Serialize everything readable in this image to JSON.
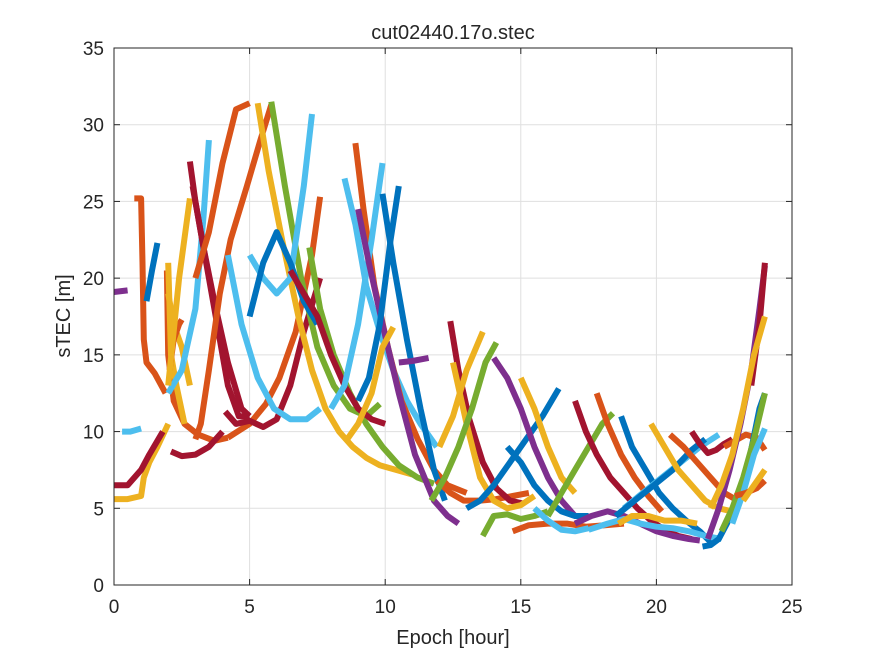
{
  "chart_data": {
    "type": "line",
    "title": "cut02440.17o.stec",
    "xlabel": "Epoch [hour]",
    "ylabel": "sTEC [m]",
    "xlim": [
      0,
      25
    ],
    "ylim": [
      0,
      35
    ],
    "xticks": [
      0,
      5,
      10,
      15,
      20,
      25
    ],
    "yticks": [
      0,
      5,
      10,
      15,
      20,
      25,
      30,
      35
    ],
    "grid": true,
    "colors": [
      "#0072BD",
      "#D95319",
      "#EDB120",
      "#7E2F8E",
      "#77AC30",
      "#4DBEEE",
      "#A2142F"
    ],
    "series": [
      {
        "color": "#D95319",
        "x": [
          0.75,
          1.0,
          1.05,
          1.1,
          1.2,
          1.5,
          1.9
        ],
        "y": [
          25.2,
          25.2,
          21.0,
          16.0,
          14.5,
          13.8,
          12.5
        ]
      },
      {
        "color": "#0072BD",
        "x": [
          1.2,
          1.4,
          1.6
        ],
        "y": [
          18.5,
          20.5,
          22.3
        ]
      },
      {
        "color": "#EDB120",
        "x": [
          0.0,
          0.5,
          1.0,
          1.1,
          1.3,
          1.6,
          2.0
        ],
        "y": [
          5.6,
          5.6,
          5.8,
          7.0,
          8.0,
          9.0,
          10.5
        ]
      },
      {
        "color": "#A2142F",
        "x": [
          0.0,
          0.5,
          1.0,
          1.3,
          1.8
        ],
        "y": [
          6.5,
          6.5,
          7.5,
          8.5,
          10.0
        ]
      },
      {
        "color": "#7E2F8E",
        "x": [
          0.0,
          0.5
        ],
        "y": [
          19.1,
          19.2
        ]
      },
      {
        "color": "#4DBEEE",
        "x": [
          0.3,
          0.6,
          1.0
        ],
        "y": [
          10.0,
          10.0,
          10.2
        ]
      },
      {
        "color": "#D95319",
        "x": [
          1.95,
          2.0,
          2.2,
          2.6,
          3.1,
          3.7,
          4.2
        ],
        "y": [
          20.5,
          15.0,
          12.0,
          10.5,
          9.8,
          9.4,
          9.6
        ]
      },
      {
        "color": "#D95319",
        "x": [
          4.2,
          5.0,
          5.6,
          6.1,
          6.7,
          7.3,
          7.6
        ],
        "y": [
          9.6,
          10.5,
          11.8,
          13.5,
          16.5,
          21.5,
          25.3
        ]
      },
      {
        "color": "#EDB120",
        "x": [
          2.0,
          2.1,
          2.3,
          2.6
        ],
        "y": [
          21.0,
          15.0,
          13.0,
          10.5
        ]
      },
      {
        "color": "#EDB120",
        "x": [
          2.0,
          2.2,
          2.5,
          2.8
        ],
        "y": [
          19.0,
          17.0,
          15.5,
          13.0
        ]
      },
      {
        "color": "#A2142F",
        "x": [
          2.1,
          2.5,
          3.0,
          3.5,
          4.0
        ],
        "y": [
          8.7,
          8.4,
          8.5,
          9.0,
          10.0
        ]
      },
      {
        "color": "#D95319",
        "x": [
          2.05,
          2.2,
          2.4,
          2.5
        ],
        "y": [
          14.0,
          16.0,
          17.0,
          17.3
        ]
      },
      {
        "color": "#4DBEEE",
        "x": [
          2.0,
          2.5,
          3.0,
          3.3,
          3.5
        ],
        "y": [
          12.5,
          14.0,
          18.0,
          24.0,
          29.0
        ]
      },
      {
        "color": "#EDB120",
        "x": [
          2.0,
          2.4,
          2.8
        ],
        "y": [
          13.0,
          20.0,
          25.2
        ]
      },
      {
        "color": "#A2142F",
        "x": [
          2.8,
          3.0,
          3.3,
          3.7,
          4.2,
          4.7,
          5.0
        ],
        "y": [
          27.6,
          25.0,
          22.0,
          18.5,
          14.5,
          11.5,
          11.0
        ]
      },
      {
        "color": "#A2142F",
        "x": [
          2.9,
          3.1,
          3.4,
          3.8,
          4.2,
          4.6,
          5.0
        ],
        "y": [
          26.0,
          24.0,
          21.0,
          17.0,
          13.0,
          11.0,
          11.0
        ]
      },
      {
        "color": "#D95319",
        "x": [
          3.0,
          3.2,
          3.5,
          3.9,
          4.3,
          4.9,
          5.4,
          5.8
        ],
        "y": [
          9.5,
          10.5,
          14.0,
          19.0,
          22.5,
          26.0,
          29.0,
          31.3
        ]
      },
      {
        "color": "#A2142F",
        "x": [
          4.1,
          4.5,
          5.0,
          5.5,
          6.0,
          6.5,
          7.0,
          7.6
        ],
        "y": [
          11.3,
          10.5,
          10.7,
          10.3,
          10.8,
          13.0,
          16.5,
          20.0
        ]
      },
      {
        "color": "#4DBEEE",
        "x": [
          4.2,
          4.7,
          5.3,
          5.9,
          6.5,
          7.1,
          7.6
        ],
        "y": [
          21.5,
          17.0,
          13.5,
          11.5,
          10.8,
          10.8,
          11.5
        ]
      },
      {
        "color": "#D95319",
        "x": [
          3.0,
          3.5,
          4.0,
          4.5,
          5.0
        ],
        "y": [
          20.0,
          23.0,
          27.5,
          31.0,
          31.4
        ]
      },
      {
        "color": "#EDB120",
        "x": [
          5.3,
          5.7,
          6.2,
          6.8,
          7.3,
          7.8,
          8.3,
          8.8,
          9.3,
          9.8,
          10.4,
          11.0
        ],
        "y": [
          31.4,
          27.0,
          22.5,
          17.5,
          14.0,
          11.5,
          10.0,
          9.0,
          8.3,
          7.8,
          7.5,
          7.2
        ]
      },
      {
        "color": "#77AC30",
        "x": [
          5.8,
          6.3,
          6.9,
          7.5,
          8.1,
          8.7,
          9.3,
          9.8
        ],
        "y": [
          31.5,
          26.0,
          20.0,
          15.5,
          13.0,
          11.5,
          11.0,
          11.8
        ]
      },
      {
        "color": "#4DBEEE",
        "x": [
          5.0,
          5.5,
          6.0,
          6.5,
          7.0,
          7.3
        ],
        "y": [
          21.5,
          20.0,
          19.0,
          20.0,
          26.0,
          30.7
        ]
      },
      {
        "color": "#0072BD",
        "x": [
          5.0,
          5.5,
          6.0,
          6.5,
          7.0,
          7.5
        ],
        "y": [
          17.5,
          21.0,
          23.0,
          21.0,
          18.5,
          17.0
        ]
      },
      {
        "color": "#77AC30",
        "x": [
          7.2,
          7.6,
          8.1,
          8.7,
          9.3,
          9.9,
          10.5,
          11.2,
          11.8
        ],
        "y": [
          22.0,
          18.0,
          15.0,
          12.5,
          10.5,
          9.0,
          7.8,
          7.0,
          6.6
        ]
      },
      {
        "color": "#A2142F",
        "x": [
          6.5,
          7.0,
          7.5,
          8.0,
          8.5,
          9.0,
          9.5,
          10.0
        ],
        "y": [
          20.5,
          19.0,
          17.5,
          15.0,
          13.0,
          11.5,
          10.8,
          10.5
        ]
      },
      {
        "color": "#4DBEEE",
        "x": [
          8.5,
          8.9,
          9.3,
          9.8,
          10.3,
          10.8,
          11.3,
          11.9
        ],
        "y": [
          26.5,
          23.5,
          19.5,
          16.5,
          14.0,
          12.0,
          10.5,
          9.0
        ]
      },
      {
        "color": "#D95319",
        "x": [
          8.9,
          9.2,
          9.6,
          10.1,
          10.6,
          11.2,
          11.8,
          12.3,
          13.0
        ],
        "y": [
          28.8,
          24.5,
          19.5,
          15.5,
          12.0,
          9.5,
          7.5,
          6.5,
          6.0
        ]
      },
      {
        "color": "#4DBEEE",
        "x": [
          8.0,
          8.5,
          9.0,
          9.5,
          9.9
        ],
        "y": [
          11.5,
          13.0,
          17.0,
          22.5,
          27.5
        ]
      },
      {
        "color": "#7E2F8E",
        "x": [
          9.0,
          9.4,
          9.9,
          10.5,
          11.1,
          11.8,
          12.3,
          12.7
        ],
        "y": [
          24.5,
          21.0,
          17.0,
          12.5,
          8.5,
          5.5,
          4.5,
          4.0
        ]
      },
      {
        "color": "#0072BD",
        "x": [
          9.0,
          9.4,
          9.8,
          10.2,
          10.5
        ],
        "y": [
          12.0,
          13.5,
          17.0,
          22.5,
          26.0
        ]
      },
      {
        "color": "#0072BD",
        "x": [
          9.9,
          10.3,
          10.8,
          11.3,
          11.8,
          12.2
        ],
        "y": [
          25.5,
          21.0,
          16.0,
          11.5,
          7.5,
          5.5
        ]
      },
      {
        "color": "#EDB120",
        "x": [
          8.6,
          9.0,
          9.5,
          9.9,
          10.3
        ],
        "y": [
          9.5,
          10.5,
          12.5,
          15.5,
          16.8
        ]
      },
      {
        "color": "#7E2F8E",
        "x": [
          10.5,
          11.0,
          11.6
        ],
        "y": [
          14.5,
          14.6,
          14.8
        ]
      },
      {
        "color": "#D95319",
        "x": [
          11.9,
          12.4,
          12.9,
          13.5,
          14.1,
          14.7,
          15.3
        ],
        "y": [
          6.8,
          6.0,
          5.5,
          5.5,
          5.6,
          5.8,
          6.0
        ]
      },
      {
        "color": "#A2142F",
        "x": [
          12.4,
          12.7,
          13.1,
          13.6,
          14.1,
          14.6,
          15.1
        ],
        "y": [
          17.2,
          14.0,
          10.8,
          8.0,
          6.3,
          5.5,
          5.3
        ]
      },
      {
        "color": "#EDB120",
        "x": [
          12.5,
          13.0,
          13.5,
          14.0,
          14.5,
          15.0,
          15.5
        ],
        "y": [
          14.5,
          10.5,
          7.0,
          5.5,
          5.0,
          5.2,
          5.8
        ]
      },
      {
        "color": "#77AC30",
        "x": [
          11.7,
          12.2,
          12.7,
          13.2,
          13.7,
          14.1
        ],
        "y": [
          5.5,
          7.0,
          9.0,
          11.5,
          14.5,
          15.8
        ]
      },
      {
        "color": "#EDB120",
        "x": [
          12.0,
          12.5,
          13.0,
          13.6
        ],
        "y": [
          9.0,
          11.0,
          14.0,
          16.5
        ]
      },
      {
        "color": "#0072BD",
        "x": [
          13.0,
          13.5,
          14.0,
          14.6,
          15.2,
          15.8,
          16.4
        ],
        "y": [
          5.0,
          5.5,
          6.5,
          8.0,
          9.5,
          11.0,
          12.8
        ]
      },
      {
        "color": "#77AC30",
        "x": [
          13.6,
          14.0,
          14.5,
          15.0,
          15.5,
          16.0
        ],
        "y": [
          3.2,
          4.5,
          4.6,
          4.3,
          4.5,
          4.8
        ]
      },
      {
        "color": "#7E2F8E",
        "x": [
          14.0,
          14.5,
          15.0,
          15.5,
          16.0,
          16.5,
          17.0
        ],
        "y": [
          14.8,
          13.5,
          11.5,
          9.0,
          7.0,
          5.5,
          4.5
        ]
      },
      {
        "color": "#0072BD",
        "x": [
          14.5,
          15.0,
          15.5,
          16.0,
          16.5,
          17.0,
          17.5
        ],
        "y": [
          9.0,
          8.0,
          6.5,
          5.5,
          4.8,
          4.5,
          4.5
        ]
      },
      {
        "color": "#EDB120",
        "x": [
          15.0,
          15.5,
          16.0,
          16.5,
          17.0
        ],
        "y": [
          13.5,
          11.5,
          9.0,
          7.0,
          6.0
        ]
      },
      {
        "color": "#D95319",
        "x": [
          14.7,
          15.3,
          16.0,
          16.7,
          17.4,
          18.1,
          18.8
        ],
        "y": [
          3.5,
          3.9,
          4.0,
          4.0,
          3.8,
          3.9,
          4.0
        ]
      },
      {
        "color": "#4DBEEE",
        "x": [
          15.5,
          16.0,
          16.5,
          17.0,
          17.5
        ],
        "y": [
          5.0,
          4.2,
          3.6,
          3.5,
          3.7
        ]
      },
      {
        "color": "#77AC30",
        "x": [
          16.0,
          16.5,
          17.0,
          17.5,
          18.0,
          18.4
        ],
        "y": [
          4.5,
          6.0,
          7.5,
          9.0,
          10.5,
          11.2
        ]
      },
      {
        "color": "#A2142F",
        "x": [
          17.0,
          17.4,
          17.8,
          18.3,
          18.8,
          19.3,
          19.8,
          20.3,
          20.8,
          21.3
        ],
        "y": [
          12.0,
          10.0,
          8.5,
          7.0,
          6.0,
          5.0,
          4.2,
          3.6,
          3.2,
          3.0
        ]
      },
      {
        "color": "#D95319",
        "x": [
          17.8,
          18.2,
          18.7,
          19.2,
          19.7,
          20.2
        ],
        "y": [
          12.5,
          10.5,
          8.5,
          7.0,
          5.8,
          4.8
        ]
      },
      {
        "color": "#7E2F8E",
        "x": [
          17.0,
          17.6,
          18.2,
          18.8,
          19.4,
          20.0,
          20.6,
          21.2,
          21.6
        ],
        "y": [
          4.0,
          4.5,
          4.8,
          4.5,
          4.0,
          3.5,
          3.2,
          3.0,
          2.9
        ]
      },
      {
        "color": "#0072BD",
        "x": [
          18.7,
          19.1,
          19.6,
          20.1,
          20.6,
          21.1,
          21.6,
          22.0
        ],
        "y": [
          11.0,
          9.0,
          7.5,
          6.0,
          5.0,
          4.2,
          3.5,
          2.8
        ]
      },
      {
        "color": "#4DBEEE",
        "x": [
          17.5,
          18.2,
          18.8,
          19.4,
          20.0,
          20.6,
          21.2,
          21.8,
          22.4
        ],
        "y": [
          3.6,
          4.0,
          4.3,
          4.0,
          3.8,
          3.7,
          3.5,
          3.2,
          3.0
        ]
      },
      {
        "color": "#EDB120",
        "x": [
          18.6,
          19.1,
          19.7,
          20.3,
          20.9,
          21.5
        ],
        "y": [
          4.0,
          4.5,
          4.5,
          4.2,
          4.2,
          4.0
        ]
      },
      {
        "color": "#4DBEEE",
        "x": [
          18.8,
          19.5,
          20.2,
          20.9,
          21.6,
          22.3
        ],
        "y": [
          5.0,
          6.0,
          7.0,
          8.0,
          9.0,
          9.8
        ]
      },
      {
        "color": "#0072BD",
        "x": [
          18.5,
          19.2,
          19.9,
          20.6,
          21.3,
          21.8
        ],
        "y": [
          4.5,
          5.5,
          6.5,
          7.5,
          8.8,
          9.5
        ]
      },
      {
        "color": "#EDB120",
        "x": [
          19.8,
          20.3,
          20.8,
          21.3,
          21.8,
          22.3,
          22.8
        ],
        "y": [
          10.5,
          9.0,
          7.5,
          6.5,
          5.5,
          5.0,
          4.8
        ]
      },
      {
        "color": "#D95319",
        "x": [
          20.5,
          21.0,
          21.5,
          22.0,
          22.5,
          23.0
        ],
        "y": [
          9.8,
          9.0,
          8.0,
          7.0,
          6.0,
          5.5
        ]
      },
      {
        "color": "#A2142F",
        "x": [
          21.3,
          21.6,
          21.9,
          22.2,
          22.5,
          22.8
        ],
        "y": [
          10.0,
          9.2,
          8.6,
          8.8,
          9.2,
          9.5
        ]
      },
      {
        "color": "#D95319",
        "x": [
          22.5,
          22.9,
          23.3,
          23.7,
          24.0
        ],
        "y": [
          9.0,
          9.4,
          9.8,
          9.6,
          8.8
        ]
      },
      {
        "color": "#0072BD",
        "x": [
          21.7,
          22.0,
          22.3,
          22.6,
          23.0,
          23.4,
          23.8,
          24.0
        ],
        "y": [
          2.5,
          2.6,
          3.0,
          4.0,
          5.5,
          8.0,
          11.5,
          12.5
        ]
      },
      {
        "color": "#7E2F8E",
        "x": [
          21.9,
          22.3,
          22.7,
          23.1,
          23.5,
          23.8,
          24.0
        ],
        "y": [
          3.0,
          5.0,
          7.5,
          10.5,
          14.0,
          18.0,
          20.8
        ]
      },
      {
        "color": "#A2142F",
        "x": [
          23.5,
          23.8,
          24.0
        ],
        "y": [
          13.0,
          17.0,
          21.0
        ]
      },
      {
        "color": "#EDB120",
        "x": [
          22.0,
          22.4,
          22.8,
          23.2,
          23.6,
          24.0
        ],
        "y": [
          5.0,
          6.5,
          8.5,
          11.5,
          15.0,
          17.5
        ]
      },
      {
        "color": "#77AC30",
        "x": [
          22.4,
          22.8,
          23.2,
          23.6,
          24.0
        ],
        "y": [
          3.5,
          5.0,
          7.0,
          9.5,
          12.5
        ]
      },
      {
        "color": "#4DBEEE",
        "x": [
          22.8,
          23.2,
          23.6,
          24.0
        ],
        "y": [
          4.0,
          6.0,
          8.5,
          10.2
        ]
      },
      {
        "color": "#D95319",
        "x": [
          22.9,
          23.3,
          23.7,
          24.0
        ],
        "y": [
          5.8,
          6.0,
          6.3,
          6.8
        ]
      },
      {
        "color": "#EDB120",
        "x": [
          23.2,
          23.6,
          24.0
        ],
        "y": [
          5.5,
          6.5,
          7.5
        ]
      }
    ]
  }
}
